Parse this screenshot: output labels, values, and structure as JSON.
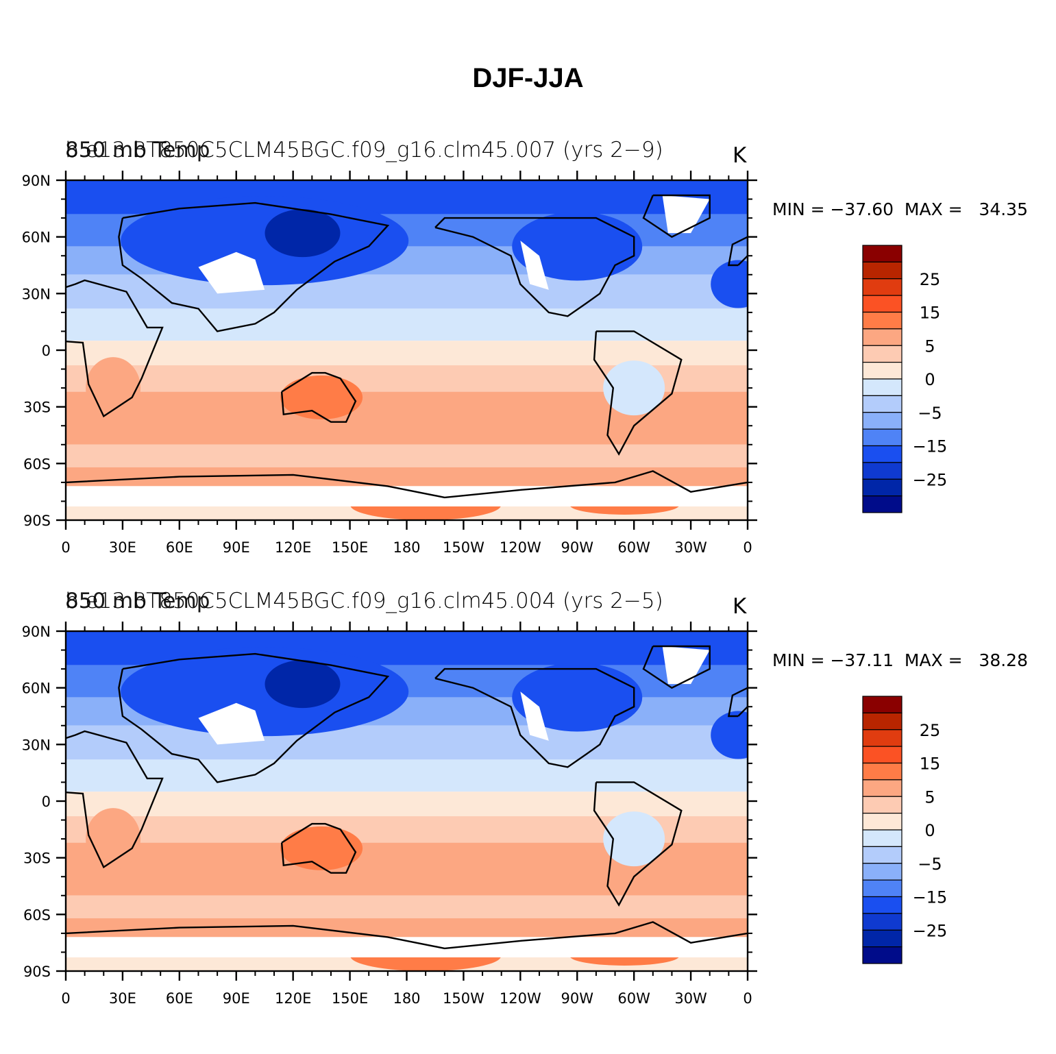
{
  "title": "DJF-JJA",
  "panels": [
    {
      "case": "b.e13.BT850C5CLM45BGC.f09_g16.clm45.007 (yrs 2−9)",
      "variable": "850 mb Temp",
      "units": "K",
      "stats_text": "MIN = −37.60  MAX =   34.35",
      "min": -37.6,
      "max": 34.35
    },
    {
      "case": "b.e13.BT850C5CLM45BGC.f09_g16.clm45.004 (yrs 2−5)",
      "variable": "850 mb Temp",
      "units": "K",
      "stats_text": "MIN = −37.11  MAX =   38.28",
      "min": -37.11,
      "max": 38.28
    }
  ],
  "lat_labels": [
    "90N",
    "60N",
    "30N",
    "0",
    "30S",
    "60S",
    "90S"
  ],
  "lon_labels": [
    "0",
    "30E",
    "60E",
    "90E",
    "120E",
    "150E",
    "180",
    "150W",
    "120W",
    "90W",
    "60W",
    "30W",
    "0"
  ],
  "colorbar": {
    "colors": [
      "#8a0000",
      "#b82500",
      "#e03c10",
      "#fb5224",
      "#ff7c47",
      "#fca782",
      "#fdcbb3",
      "#fde8d7",
      "#d4e7fc",
      "#b3ccfb",
      "#8ab0f9",
      "#4f83f6",
      "#1a4ff0",
      "#0f3ad0",
      "#0026a8",
      "#000c8a"
    ],
    "tick_labels": [
      "25",
      "15",
      "5",
      "0",
      "−5",
      "−15",
      "−25"
    ]
  }
}
